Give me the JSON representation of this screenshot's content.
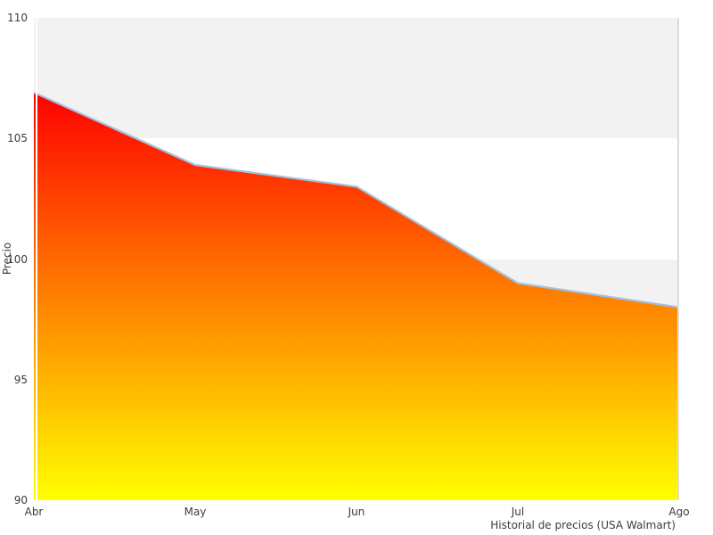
{
  "chart_data": {
    "type": "area",
    "categories": [
      "Abr",
      "May",
      "Jun",
      "Jul",
      "Ago"
    ],
    "values": [
      106.9,
      103.9,
      103,
      99,
      98
    ],
    "title": "",
    "xlabel": "Historial de precios (USA Walmart)",
    "ylabel": "Precio",
    "ylim": [
      90,
      110
    ],
    "yticks": [
      90,
      95,
      100,
      105,
      110
    ],
    "shaded_bands": [
      [
        105,
        110
      ],
      [
        95,
        100
      ]
    ],
    "legend": "none",
    "grid": "horizontal alternating shaded bands",
    "style": {
      "fill_gradient_top": "#ff0000",
      "fill_gradient_bottom": "#ffff00",
      "line_color": "#a3c0e0",
      "band_color": "#f2f2f2",
      "plot_background": "#ffffff",
      "page_background": "#ffffff",
      "text_color": "#3c3c3c",
      "right_spine_color": "#dcdcdc",
      "left_spine_color": "#ffffff"
    }
  }
}
